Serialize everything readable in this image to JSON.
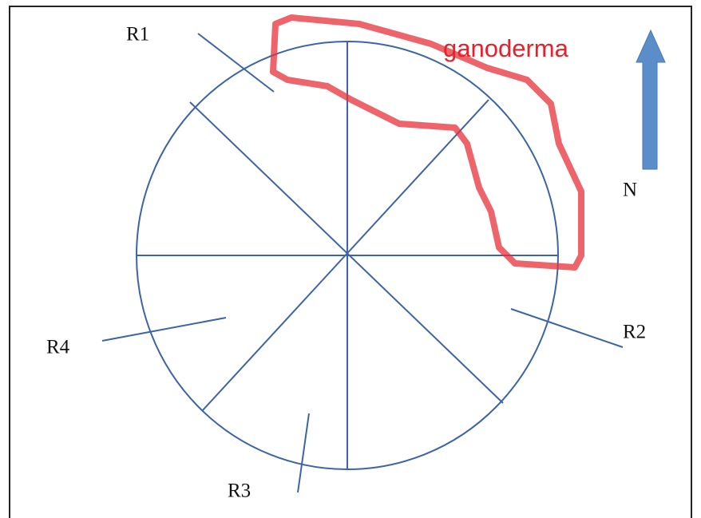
{
  "labels": {
    "r1": "R1",
    "r2": "R2",
    "r3": "R3",
    "r4": "R4"
  },
  "annotation": "ganoderma",
  "north": "N"
}
